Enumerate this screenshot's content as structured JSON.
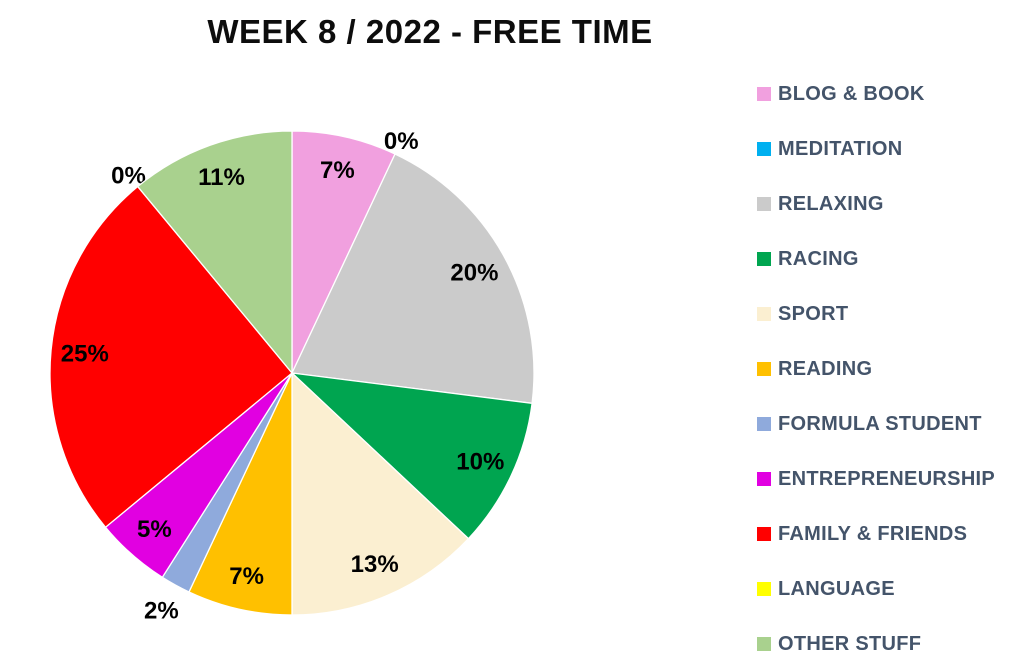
{
  "chart_data": {
    "type": "pie",
    "title": "WEEK 8 / 2022 - FREE TIME",
    "data_labels": "percent",
    "start_angle_deg": 0,
    "direction": "clockwise",
    "legend_position": "right",
    "grid": false,
    "background_color": "#FFFFFF",
    "title_color": "#0D0D0D",
    "data_label_color": "#000000",
    "legend_text_color": "#44546A",
    "slice_border_color": "#FFFFFF",
    "slices": [
      {
        "label": "BLOG & BOOK",
        "value_pct": 7,
        "color": "#F1A0DF"
      },
      {
        "label": "MEDITATION",
        "value_pct": 0,
        "color": "#00B0F0"
      },
      {
        "label": "RELAXING",
        "value_pct": 20,
        "color": "#CBCBCB"
      },
      {
        "label": "RACING",
        "value_pct": 10,
        "color": "#00A550"
      },
      {
        "label": "SPORT",
        "value_pct": 13,
        "color": "#FBEFD1"
      },
      {
        "label": "READING",
        "value_pct": 7,
        "color": "#FFC000"
      },
      {
        "label": "FORMULA STUDENT",
        "value_pct": 2,
        "color": "#8FAADC"
      },
      {
        "label": "ENTREPRENEURSHIP",
        "value_pct": 5,
        "color": "#E100E1"
      },
      {
        "label": "FAMILY & FRIENDS",
        "value_pct": 25,
        "color": "#FF0000"
      },
      {
        "label": "LANGUAGE",
        "value_pct": 0,
        "color": "#FFFF00"
      },
      {
        "label": "OTHER STUFF",
        "value_pct": 11,
        "color": "#A9D18E"
      }
    ]
  }
}
